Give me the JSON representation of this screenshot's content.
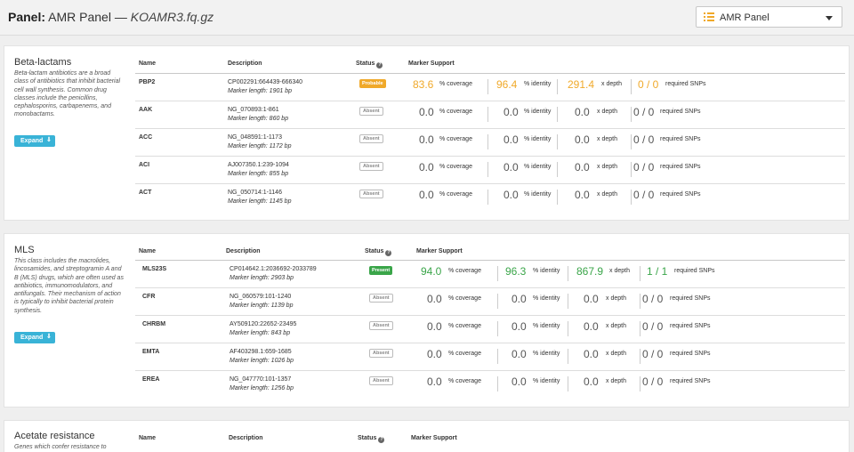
{
  "header": {
    "label": "Panel:",
    "panel_name": "AMR Panel",
    "separator": "—",
    "filename": "KOAMR3.fq.gz"
  },
  "panel_select": {
    "icon": "list-icon",
    "selected": "AMR Panel",
    "caret_icon": "caret-down-icon"
  },
  "table_headers": {
    "name": "Name",
    "description": "Description",
    "status": "Status",
    "status_help_icon": "?",
    "marker_support": "Marker Support"
  },
  "metric_labels": {
    "coverage": "% coverage",
    "identity": "% identity",
    "depth": "x depth",
    "snps": "required SNPs"
  },
  "colors": {
    "probable": "#f0a92a",
    "present": "#3aa549",
    "absent": "#555555",
    "expand_button": "#39b3d7"
  },
  "classes": [
    {
      "title": "Beta-lactams",
      "description": "Beta-lactam antibiotics are a broad class of antibiotics that inhibit bacterial cell wall synthesis. Common drug classes include the penicillins, cephalosporins, carbapenems, and monobactams.",
      "expand_label": "Expand",
      "rows": [
        {
          "name": "PBP2",
          "accession": "CP002291:664439-666340",
          "marker_length": "Marker length: 1901 bp",
          "status": "Probable",
          "status_type": "probable",
          "coverage": "83.6",
          "identity": "96.4",
          "depth": "291.4",
          "snps": "0 / 0"
        },
        {
          "name": "AAK",
          "accession": "NG_070893:1-861",
          "marker_length": "Marker length: 860 bp",
          "status": "Absent",
          "status_type": "absent",
          "coverage": "0.0",
          "identity": "0.0",
          "depth": "0.0",
          "snps": "0 / 0"
        },
        {
          "name": "ACC",
          "accession": "NG_048591:1-1173",
          "marker_length": "Marker length: 1172 bp",
          "status": "Absent",
          "status_type": "absent",
          "coverage": "0.0",
          "identity": "0.0",
          "depth": "0.0",
          "snps": "0 / 0"
        },
        {
          "name": "ACI",
          "accession": "AJ007350.1:239-1094",
          "marker_length": "Marker length: 855 bp",
          "status": "Absent",
          "status_type": "absent",
          "coverage": "0.0",
          "identity": "0.0",
          "depth": "0.0",
          "snps": "0 / 0"
        },
        {
          "name": "ACT",
          "accession": "NG_050714:1-1146",
          "marker_length": "Marker length: 1145 bp",
          "status": "Absent",
          "status_type": "absent",
          "coverage": "0.0",
          "identity": "0.0",
          "depth": "0.0",
          "snps": "0 / 0"
        }
      ]
    },
    {
      "title": "MLS",
      "description": "This class includes the macrolides, lincosamides, and streptogramin A and B (MLS) drugs, which are often used as antibiotics, immunomodulators, and antifungals. Their mechanism of action is typically to inhibit bacterial protein synthesis.",
      "expand_label": "Expand",
      "rows": [
        {
          "name": "MLS23S",
          "accession": "CP014642.1:2036692-2033789",
          "marker_length": "Marker length: 2903 bp",
          "status": "Present",
          "status_type": "present",
          "coverage": "94.0",
          "identity": "96.3",
          "depth": "867.9",
          "snps": "1 / 1"
        },
        {
          "name": "CFR",
          "accession": "NG_060579:101-1240",
          "marker_length": "Marker length: 1139 bp",
          "status": "Absent",
          "status_type": "absent",
          "coverage": "0.0",
          "identity": "0.0",
          "depth": "0.0",
          "snps": "0 / 0"
        },
        {
          "name": "CHRBM",
          "accession": "AY509120:22652-23495",
          "marker_length": "Marker length: 843 bp",
          "status": "Absent",
          "status_type": "absent",
          "coverage": "0.0",
          "identity": "0.0",
          "depth": "0.0",
          "snps": "0 / 0"
        },
        {
          "name": "EMTA",
          "accession": "AF403298.1:659-1685",
          "marker_length": "Marker length: 1026 bp",
          "status": "Absent",
          "status_type": "absent",
          "coverage": "0.0",
          "identity": "0.0",
          "depth": "0.0",
          "snps": "0 / 0"
        },
        {
          "name": "EREA",
          "accession": "NG_047770:101-1357",
          "marker_length": "Marker length: 1256 bp",
          "status": "Absent",
          "status_type": "absent",
          "coverage": "0.0",
          "identity": "0.0",
          "depth": "0.0",
          "snps": "0 / 0"
        }
      ]
    },
    {
      "title": "Acetate resistance",
      "description": "Genes which confer resistance to",
      "rows": []
    }
  ]
}
